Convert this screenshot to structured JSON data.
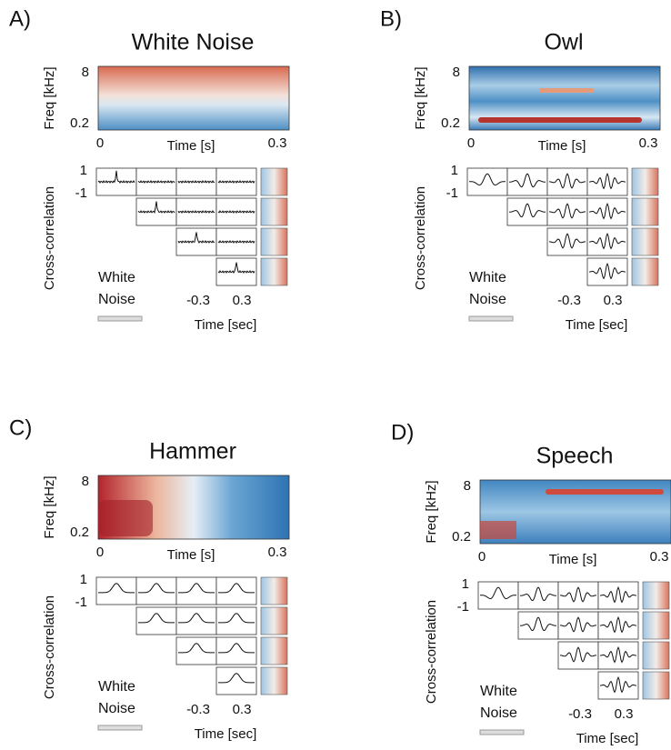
{
  "panels": [
    {
      "label": "A)",
      "title": "White Noise",
      "spectrogram": {
        "ylabel": "Freq [kHz]",
        "yticks": [
          8,
          0.2
        ],
        "xlabel": "Time [s]",
        "xticks": [
          0,
          0.3
        ]
      },
      "xcorr": {
        "ylabel": "Cross-correlation",
        "yticks": [
          1,
          -1
        ],
        "legend": [
          "White",
          "Noise"
        ],
        "xticks": [
          -0.3,
          0.3
        ],
        "xlabel": "Time [sec]"
      }
    },
    {
      "label": "B)",
      "title": "Owl",
      "spectrogram": {
        "ylabel": "Freq [kHz]",
        "yticks": [
          8,
          0.2
        ],
        "xlabel": "Time [s]",
        "xticks": [
          0,
          0.3
        ]
      },
      "xcorr": {
        "ylabel": "Cross-correlation",
        "yticks": [
          1,
          -1
        ],
        "legend": [
          "White",
          "Noise"
        ],
        "xticks": [
          -0.3,
          0.3
        ],
        "xlabel": "Time [sec]"
      }
    },
    {
      "label": "C)",
      "title": "Hammer",
      "spectrogram": {
        "ylabel": "Freq [kHz]",
        "yticks": [
          8,
          0.2
        ],
        "xlabel": "Time [s]",
        "xticks": [
          0,
          0.3
        ]
      },
      "xcorr": {
        "ylabel": "Cross-correlation",
        "yticks": [
          1,
          -1
        ],
        "legend": [
          "White",
          "Noise"
        ],
        "xticks": [
          -0.3,
          0.3
        ],
        "xlabel": "Time [sec]"
      }
    },
    {
      "label": "D)",
      "title": "Speech",
      "spectrogram": {
        "ylabel": "Freq [kHz]",
        "yticks": [
          8,
          0.2
        ],
        "xlabel": "Time [s]",
        "xticks": [
          0,
          0.3
        ]
      },
      "xcorr": {
        "ylabel": "Cross-correlation",
        "yticks": [
          1,
          -1
        ],
        "legend": [
          "White",
          "Noise"
        ],
        "xticks": [
          -0.3,
          0.3
        ],
        "xlabel": "Time [sec]"
      }
    }
  ]
}
